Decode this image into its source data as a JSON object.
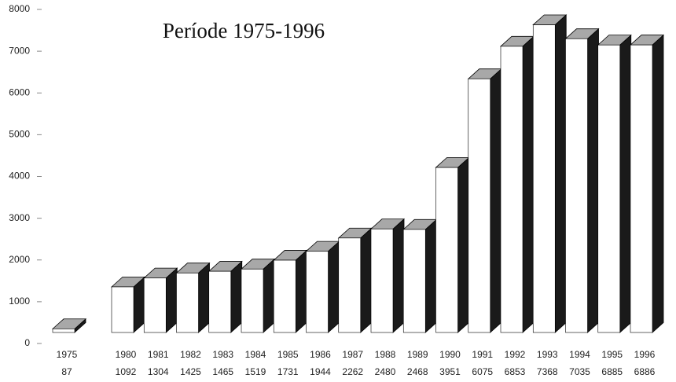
{
  "chart_data": {
    "type": "bar3d",
    "title": "Període 1975-1996",
    "categories": [
      "1975",
      "1980",
      "1981",
      "1982",
      "1983",
      "1984",
      "1985",
      "1986",
      "1987",
      "1988",
      "1989",
      "1990",
      "1991",
      "1992",
      "1993",
      "1994",
      "1995",
      "1996"
    ],
    "values": [
      87,
      1092,
      1304,
      1425,
      1465,
      1519,
      1731,
      1944,
      2262,
      2480,
      2468,
      3951,
      6075,
      6853,
      7368,
      7035,
      6885,
      6886
    ],
    "ylim": [
      0,
      8000
    ],
    "yticks": [
      0,
      1000,
      2000,
      3000,
      4000,
      5000,
      6000,
      7000,
      8000
    ],
    "colors": {
      "front": "#ffffff",
      "top": "#a8a8a8",
      "side": "#1a1a1a"
    }
  }
}
